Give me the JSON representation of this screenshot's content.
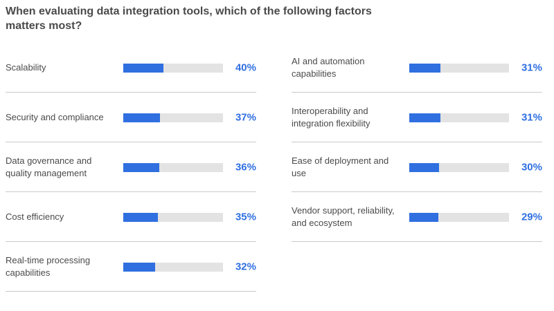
{
  "title": "When evaluating data integration tools, which of the following factors matters most?",
  "colors": {
    "bar": "#2f6fe0",
    "track": "#e3e3e3",
    "text": "#4a4a4a"
  },
  "chart_data": {
    "type": "bar",
    "orientation": "horizontal",
    "title": "When evaluating data integration tools, which of the following factors matters most?",
    "xlim": [
      0,
      100
    ],
    "unit": "%",
    "categories": [
      "Scalability",
      "Security and compliance",
      "Data governance and quality management",
      "Cost efficiency",
      "Real-time processing capabilities",
      "AI and automation capabilities",
      "Interoperability and integration flexibility",
      "Ease of deployment and use",
      "Vendor support, reliability, and ecosystem"
    ],
    "values": [
      40,
      37,
      36,
      35,
      32,
      31,
      31,
      30,
      29
    ],
    "value_labels": [
      "40%",
      "37%",
      "36%",
      "35%",
      "32%",
      "31%",
      "31%",
      "30%",
      "29%"
    ]
  }
}
